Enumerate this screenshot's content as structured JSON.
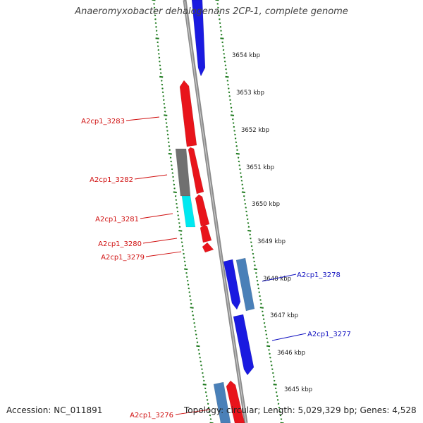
{
  "title": "Anaeromyxobacter dehalogenans 2CP-1, complete genome",
  "accession": "Accession: NC_011891",
  "topology": "Topology: circular; Length: 5,029,329 bp; Genes: 4,528",
  "colors": {
    "forward": "#e8141b",
    "reverse": "#1a1ae0",
    "other": "#707070",
    "rna": "#00e8f0",
    "pseudo": "#4a80b8",
    "backbone": "#8c8c8c",
    "ticks": "#1e7a1e",
    "left_label": "#d01010",
    "right_label": "#1010c0"
  },
  "kbp_labels": [
    "3654 kbp",
    "3653 kbp",
    "3652 kbp",
    "3651 kbp",
    "3650 kbp",
    "3649 kbp",
    "3648 kbp",
    "3647 kbp",
    "3646 kbp",
    "3645 kbp"
  ],
  "gene_labels": [
    {
      "text": "A2cp1_3283",
      "side": "left"
    },
    {
      "text": "A2cp1_3282",
      "side": "left"
    },
    {
      "text": "A2cp1_3281",
      "side": "left"
    },
    {
      "text": "A2cp1_3280",
      "side": "left"
    },
    {
      "text": "A2cp1_3279",
      "side": "left"
    },
    {
      "text": "A2cp1_3278",
      "side": "right"
    },
    {
      "text": "A2cp1_3277",
      "side": "right"
    },
    {
      "text": "A2cp1_3276",
      "side": "left"
    }
  ]
}
